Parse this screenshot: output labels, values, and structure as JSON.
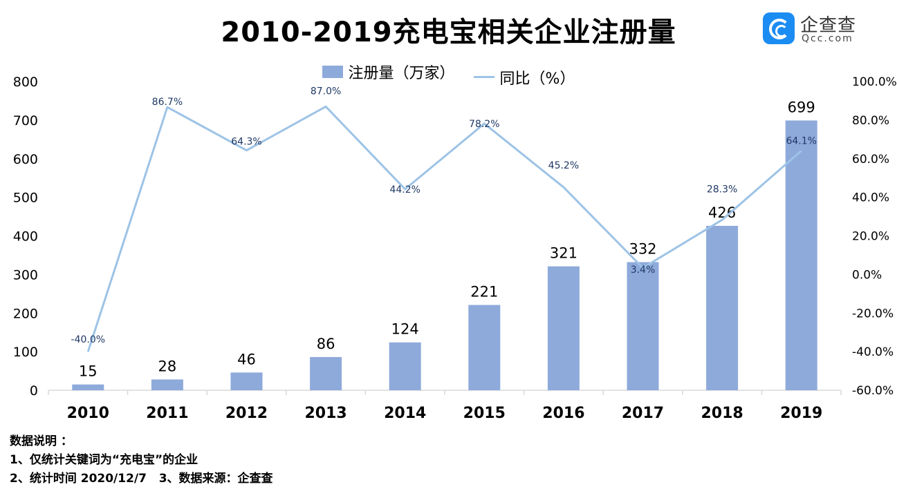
{
  "title": "2010-2019充电宝相关企业注册量",
  "logo": {
    "name": "企查查",
    "domain": "Qcc.com"
  },
  "colors": {
    "bar": "#8eaadb",
    "line": "#9dc3e6",
    "line_label": "#1f3864",
    "axis": "#d9d9d9"
  },
  "chart_data": {
    "type": "bar+line",
    "categories": [
      "2010",
      "2011",
      "2012",
      "2013",
      "2014",
      "2015",
      "2016",
      "2017",
      "2018",
      "2019"
    ],
    "series": [
      {
        "name": "注册量（万家）",
        "type": "bar",
        "axis": "left",
        "values": [
          15,
          28,
          46,
          86,
          124,
          221,
          321,
          332,
          426,
          699
        ],
        "labels": [
          "15",
          "28",
          "46",
          "86",
          "124",
          "221",
          "321",
          "332",
          "426",
          "699"
        ]
      },
      {
        "name": "同比（%）",
        "type": "line",
        "axis": "right",
        "values": [
          -40.0,
          86.7,
          64.3,
          87.0,
          44.2,
          78.2,
          45.2,
          3.4,
          28.3,
          64.1
        ],
        "labels": [
          "-40.0%",
          "86.7%",
          "64.3%",
          "87.0%",
          "44.2%",
          "78.2%",
          "45.2%",
          "3.4%",
          "28.3%",
          "64.1%"
        ]
      }
    ],
    "y_left": {
      "ylim": [
        0,
        800
      ],
      "ticks": [
        "0",
        "100",
        "200",
        "300",
        "400",
        "500",
        "600",
        "700",
        "800"
      ]
    },
    "y_right": {
      "ylim": [
        -60,
        100
      ],
      "ticks": [
        "-60.0%",
        "-40.0%",
        "-20.0%",
        "0.0%",
        "20.0%",
        "40.0%",
        "60.0%",
        "80.0%",
        "100.0%"
      ]
    },
    "legend_position": "top-center",
    "grid": false
  },
  "notes": {
    "heading": "数据说明 ：",
    "line1": "1、仅统计关键词为“充电宝”的企业",
    "line2": "2、统计时间 2020/12/7   3、数据来源：企查查"
  }
}
